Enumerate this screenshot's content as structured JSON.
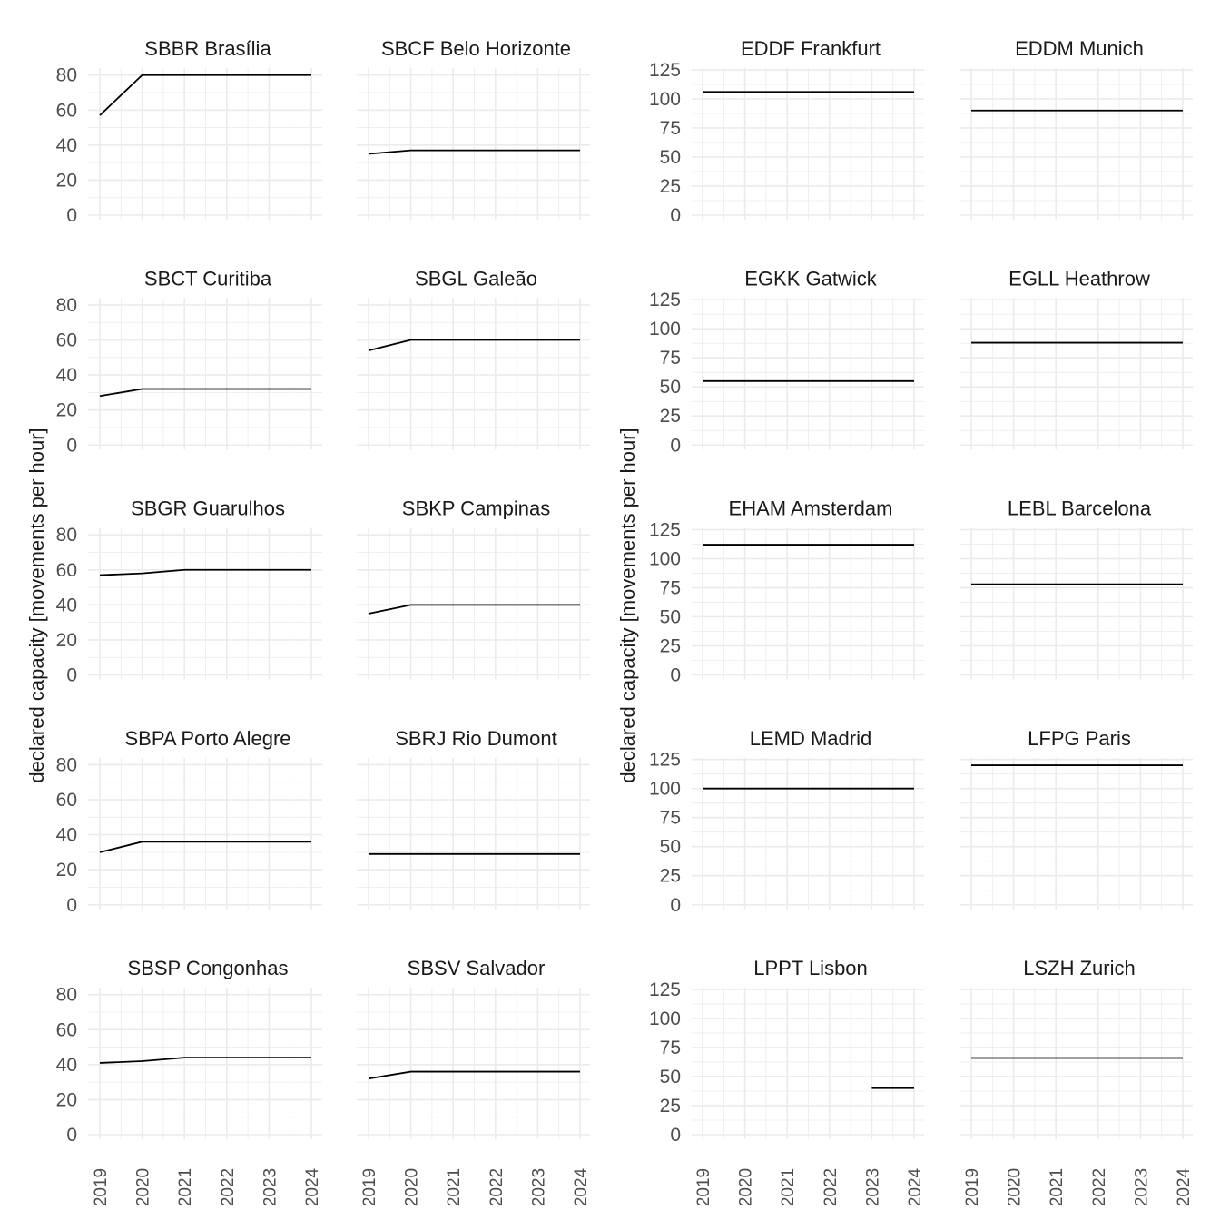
{
  "chart_data": [
    {
      "type": "line",
      "layout": "faceted 5x2",
      "ylabel": "declared capacity [movements per hour]",
      "xlabel": "",
      "x": [
        2019,
        2020,
        2021,
        2022,
        2023,
        2024
      ],
      "x_tick_labels": [
        "2019",
        "2020",
        "2021",
        "2022",
        "2023",
        "2024"
      ],
      "ylim": [
        0,
        84
      ],
      "y_ticks": [
        0,
        20,
        40,
        60,
        80
      ],
      "grid": true,
      "line_color": "#000000",
      "grid_color": "#ebebeb",
      "facets": [
        {
          "title": "SBBR Brasília",
          "values": [
            57,
            80,
            80,
            80,
            80,
            80
          ]
        },
        {
          "title": "SBCF Belo Horizonte",
          "values": [
            35,
            37,
            37,
            37,
            37,
            37
          ]
        },
        {
          "title": "SBCT Curitiba",
          "values": [
            28,
            32,
            32,
            32,
            32,
            32
          ]
        },
        {
          "title": "SBGL Galeão",
          "values": [
            54,
            60,
            60,
            60,
            60,
            60
          ]
        },
        {
          "title": "SBGR Guarulhos",
          "values": [
            57,
            58,
            60,
            60,
            60,
            60
          ]
        },
        {
          "title": "SBKP Campinas",
          "values": [
            35,
            40,
            40,
            40,
            40,
            40
          ]
        },
        {
          "title": "SBPA Porto Alegre",
          "values": [
            30,
            36,
            36,
            36,
            36,
            36
          ]
        },
        {
          "title": "SBRJ Rio Dumont",
          "values": [
            29,
            29,
            29,
            29,
            29,
            29
          ]
        },
        {
          "title": "SBSP Congonhas",
          "values": [
            41,
            42,
            44,
            44,
            44,
            44
          ]
        },
        {
          "title": "SBSV Salvador",
          "values": [
            32,
            36,
            36,
            36,
            36,
            36
          ]
        }
      ]
    },
    {
      "type": "line",
      "layout": "faceted 5x2",
      "ylabel": "declared capacity [movements per hour]",
      "xlabel": "",
      "x": [
        2019,
        2020,
        2021,
        2022,
        2023,
        2024
      ],
      "x_tick_labels": [
        "2019",
        "2020",
        "2021",
        "2022",
        "2023",
        "2024"
      ],
      "ylim": [
        0,
        126.5
      ],
      "y_ticks": [
        0,
        25,
        50,
        75,
        100,
        125
      ],
      "grid": true,
      "line_color": "#000000",
      "grid_color": "#ebebeb",
      "facets": [
        {
          "title": "EDDF Frankfurt",
          "values": [
            106,
            106,
            106,
            106,
            106,
            106
          ]
        },
        {
          "title": "EDDM Munich",
          "values": [
            90,
            90,
            90,
            90,
            90,
            90
          ]
        },
        {
          "title": "EGKK Gatwick",
          "values": [
            55,
            55,
            55,
            55,
            55,
            55
          ]
        },
        {
          "title": "EGLL Heathrow",
          "values": [
            88,
            88,
            88,
            88,
            88,
            88
          ]
        },
        {
          "title": "EHAM Amsterdam",
          "values": [
            112,
            112,
            112,
            112,
            112,
            112
          ]
        },
        {
          "title": "LEBL Barcelona",
          "values": [
            78,
            78,
            78,
            78,
            78,
            78
          ]
        },
        {
          "title": "LEMD Madrid",
          "values": [
            100,
            100,
            100,
            100,
            100,
            100
          ]
        },
        {
          "title": "LFPG Paris",
          "values": [
            120,
            120,
            120,
            120,
            120,
            120
          ]
        },
        {
          "title": "LPPT Lisbon",
          "values": [
            null,
            null,
            null,
            null,
            40,
            40
          ]
        },
        {
          "title": "LSZH Zurich",
          "values": [
            66,
            66,
            66,
            66,
            66,
            66
          ]
        }
      ]
    }
  ]
}
